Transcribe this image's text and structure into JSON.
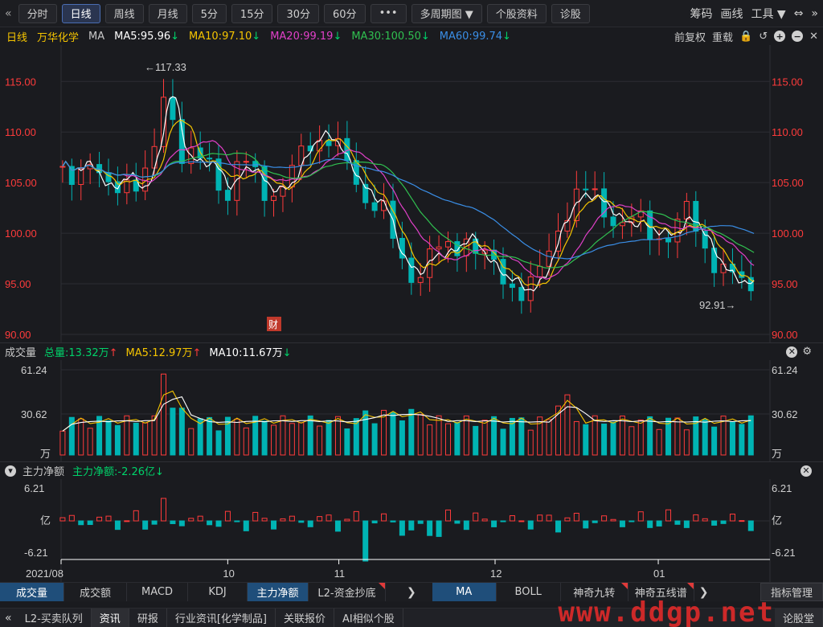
{
  "toolbar": {
    "back_icon": "double-chevron-left-icon",
    "buttons": [
      "分时",
      "日线",
      "周线",
      "月线",
      "5分",
      "15分",
      "30分",
      "60分",
      "•••",
      "多周期图 ▼",
      "个股资料",
      "诊股"
    ],
    "active_index": 1,
    "right": [
      "筹码",
      "画线",
      "工具 ▼",
      "⇔",
      "»"
    ]
  },
  "ma_bar": {
    "period": "日线",
    "stock": "万华化学",
    "ma_label": "MA",
    "ma5": "MA5:95.96",
    "ma10": "MA10:97.10",
    "ma20": "MA20:99.19",
    "ma30": "MA30:100.50",
    "ma60": "MA60:99.74",
    "arrow": "↓",
    "fq": "前复权",
    "reset": "重载"
  },
  "colors": {
    "ma5": "#ffffff",
    "ma10": "#f5c400",
    "ma20": "#e040c8",
    "ma30": "#30c050",
    "ma60": "#3a8ee6",
    "up": "#ff3b3b",
    "down": "#00b4b4"
  },
  "price_axis": {
    "ticks": [
      "115.00",
      "110.00",
      "105.00",
      "100.00",
      "95.00",
      "90.00"
    ],
    "high_label": "←117.33",
    "low_label": "92.91→",
    "cai": "财"
  },
  "volume": {
    "title": "成交量",
    "total": "总量:13.32万",
    "ma5": "MA5:12.97万",
    "ma10": "MA10:11.67万",
    "up_arrow": "↑",
    "down_arrow": "↓",
    "ticks": [
      "61.24",
      "30.62",
      "万"
    ]
  },
  "net": {
    "title": "主力净额",
    "value": "主力净额:-2.26亿",
    "arrow": "↓",
    "ticks": [
      "6.21",
      "亿",
      "-6.21"
    ]
  },
  "date_axis": [
    "2021/08",
    "10",
    "11",
    "12",
    "01"
  ],
  "tabs_indicators": [
    "成交量",
    "成交额",
    "MACD",
    "KDJ",
    "主力净额",
    "L2-资金抄底"
  ],
  "tabs_indicators2": [
    "MA",
    "BOLL",
    "神奇九转",
    "神奇五线谱"
  ],
  "indicator_mgmt": "指标管理",
  "bottom_tabs": [
    "L2-买卖队列",
    "资讯",
    "研报",
    "行业资讯[化学制品]",
    "关联报价",
    "AI相似个股"
  ],
  "bottom_right": "论股堂",
  "watermark": "www.ddgp.net"
}
